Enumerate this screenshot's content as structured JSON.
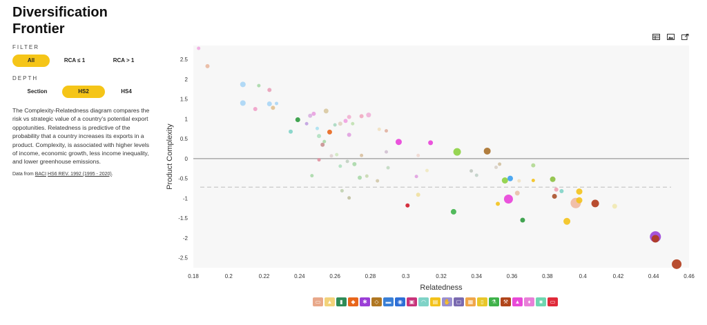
{
  "left_panel": {
    "title_line1": "Diversification",
    "title_line2": "Frontier",
    "filter_label": "FILTER",
    "filter_options": [
      "All",
      "RCA ≤ 1",
      "RCA > 1"
    ],
    "filter_selected": "All",
    "depth_label": "DEPTH",
    "depth_options": [
      "Section",
      "HS2",
      "HS4"
    ],
    "depth_selected": "HS2",
    "description": "The Complexity-Relatedness diagram compares the risk vs strategic value of a country's potential export oppotunities. Relatedness is predictive of the probability that a country increases its exports in a product. Complexity, is associated with higher levels of income, economic growth, less income inequality, and lower greenhouse emissions.",
    "source_prefix": "Data from",
    "source_link1": "BACI",
    "source_link2": "HS6 REV. 1992 (1995 - 2020)",
    "source_suffix": "."
  },
  "toolbar": {
    "icons": [
      "table-icon",
      "image-icon",
      "share-icon"
    ]
  },
  "legend": {
    "icons": [
      "sofa-icon",
      "hat-icon",
      "shirt-icon",
      "shoe-icon",
      "gear-icon",
      "gem-icon",
      "bread-icon",
      "dial-icon",
      "chip-icon",
      "arc-icon",
      "box-icon",
      "hand-icon",
      "cube-icon",
      "bus-icon",
      "bottle-icon",
      "flask-icon",
      "tool-icon",
      "drop-icon",
      "dress-icon",
      "swatch-icon",
      "ticket-icon"
    ],
    "colors": [
      "#e8a88a",
      "#f2d27a",
      "#2e8b57",
      "#e8661c",
      "#9b3fd6",
      "#b07722",
      "#3a7fd6",
      "#2e6fd6",
      "#c8337a",
      "#7fd3c7",
      "#f3c21b",
      "#9a8fd0",
      "#7a6ab0",
      "#f0a64a",
      "#e8c72a",
      "#3fb24a",
      "#b0451a",
      "#e84ad8",
      "#e87fd8",
      "#6fd6b0",
      "#e02a3a"
    ]
  },
  "chart_data": {
    "type": "scatter",
    "xlabel": "Relatedness",
    "ylabel": "Product Complexity",
    "xlim": [
      0.18,
      0.46
    ],
    "ylim": [
      -2.75,
      2.85
    ],
    "x_ticks": [
      "0.18",
      "0.2",
      "0.22",
      "0.24",
      "0.26",
      "0.28",
      "0.3",
      "0.32",
      "0.34",
      "0.36",
      "0.38",
      "0.4",
      "0.42",
      "0.44",
      "0.46"
    ],
    "y_ticks": [
      "2.5",
      "2",
      "1.5",
      "1",
      "0.5",
      "0",
      "-0.5",
      "-1",
      "-1.5",
      "-2",
      "-2.5"
    ],
    "reference_line_y": 0,
    "dashed_line_y": -0.72,
    "grid": false,
    "points": [
      {
        "x": 0.183,
        "y": 2.78,
        "c": "#f0a8e0",
        "r": 2.5
      },
      {
        "x": 0.188,
        "y": 2.33,
        "c": "#e8b8a0",
        "r": 3
      },
      {
        "x": 0.208,
        "y": 1.87,
        "c": "#a9d5f5",
        "r": 4
      },
      {
        "x": 0.208,
        "y": 1.4,
        "c": "#a9d5f5",
        "r": 4
      },
      {
        "x": 0.215,
        "y": 1.25,
        "c": "#f0a0c8",
        "r": 3
      },
      {
        "x": 0.217,
        "y": 1.84,
        "c": "#a8d8a8",
        "r": 2.5
      },
      {
        "x": 0.223,
        "y": 1.73,
        "c": "#e8a0b8",
        "r": 3
      },
      {
        "x": 0.223,
        "y": 1.38,
        "c": "#a9d5f5",
        "r": 3.5
      },
      {
        "x": 0.225,
        "y": 1.28,
        "c": "#e0c090",
        "r": 3
      },
      {
        "x": 0.227,
        "y": 1.39,
        "c": "#a9d5f5",
        "r": 2.5
      },
      {
        "x": 0.235,
        "y": 0.68,
        "c": "#7fd3c7",
        "r": 3
      },
      {
        "x": 0.239,
        "y": 0.98,
        "c": "#2e9a3e",
        "r": 3.5
      },
      {
        "x": 0.244,
        "y": 0.88,
        "c": "#c0a0e0",
        "r": 2.5
      },
      {
        "x": 0.246,
        "y": 1.08,
        "c": "#d8b0e0",
        "r": 3
      },
      {
        "x": 0.248,
        "y": 1.13,
        "c": "#e8a0e0",
        "r": 3
      },
      {
        "x": 0.25,
        "y": 0.76,
        "c": "#a9e0f0",
        "r": 2.5
      },
      {
        "x": 0.251,
        "y": 0.57,
        "c": "#b0e0c0",
        "r": 3
      },
      {
        "x": 0.253,
        "y": 0.35,
        "c": "#c89090",
        "r": 3
      },
      {
        "x": 0.254,
        "y": 0.43,
        "c": "#a8d8a8",
        "r": 2.5
      },
      {
        "x": 0.255,
        "y": 1.2,
        "c": "#d8c8a0",
        "r": 3.5
      },
      {
        "x": 0.257,
        "y": 0.67,
        "c": "#e8661c",
        "r": 3.5
      },
      {
        "x": 0.26,
        "y": 0.85,
        "c": "#a8d8c0",
        "r": 2.5
      },
      {
        "x": 0.263,
        "y": 0.88,
        "c": "#e0d0c0",
        "r": 3
      },
      {
        "x": 0.266,
        "y": 0.95,
        "c": "#f0a0e0",
        "r": 3
      },
      {
        "x": 0.268,
        "y": 1.05,
        "c": "#f0b0d0",
        "r": 3
      },
      {
        "x": 0.268,
        "y": 0.6,
        "c": "#e0a0e0",
        "r": 3
      },
      {
        "x": 0.27,
        "y": 0.88,
        "c": "#c0e0b0",
        "r": 2.5
      },
      {
        "x": 0.275,
        "y": 1.07,
        "c": "#f0a8c0",
        "r": 3
      },
      {
        "x": 0.279,
        "y": 1.1,
        "c": "#f0b0d8",
        "r": 3.5
      },
      {
        "x": 0.251,
        "y": -0.03,
        "c": "#e090a0",
        "r": 2.5
      },
      {
        "x": 0.247,
        "y": -0.43,
        "c": "#a8d8a8",
        "r": 2.5
      },
      {
        "x": 0.258,
        "y": 0.07,
        "c": "#e0d0d0",
        "r": 2.5
      },
      {
        "x": 0.261,
        "y": 0.1,
        "c": "#d0e8c0",
        "r": 2.5
      },
      {
        "x": 0.263,
        "y": -0.19,
        "c": "#b0e0c0",
        "r": 2.5
      },
      {
        "x": 0.267,
        "y": -0.07,
        "c": "#c0d0c0",
        "r": 2.5
      },
      {
        "x": 0.271,
        "y": -0.14,
        "c": "#a8d8a8",
        "r": 3
      },
      {
        "x": 0.274,
        "y": -0.48,
        "c": "#a8d8a8",
        "r": 3
      },
      {
        "x": 0.275,
        "y": 0.08,
        "c": "#d8c0a0",
        "r": 2.5
      },
      {
        "x": 0.278,
        "y": -0.44,
        "c": "#c8d8b0",
        "r": 2.5
      },
      {
        "x": 0.264,
        "y": -0.81,
        "c": "#c0d0b0",
        "r": 2.5
      },
      {
        "x": 0.268,
        "y": -0.99,
        "c": "#c0c0a0",
        "r": 2.5
      },
      {
        "x": 0.284,
        "y": -0.56,
        "c": "#d0c8a8",
        "r": 2.5
      },
      {
        "x": 0.285,
        "y": 0.74,
        "c": "#f0e0c0",
        "r": 2.5
      },
      {
        "x": 0.289,
        "y": 0.7,
        "c": "#e0b0a0",
        "r": 2.5
      },
      {
        "x": 0.289,
        "y": 0.17,
        "c": "#d0c0d0",
        "r": 2.5
      },
      {
        "x": 0.29,
        "y": -0.23,
        "c": "#c0d8c0",
        "r": 2.5
      },
      {
        "x": 0.296,
        "y": 0.42,
        "c": "#e840d8",
        "r": 4.5
      },
      {
        "x": 0.301,
        "y": -1.18,
        "c": "#d01a2a",
        "r": 3
      },
      {
        "x": 0.306,
        "y": -0.45,
        "c": "#e0a0e0",
        "r": 2.5
      },
      {
        "x": 0.307,
        "y": 0.08,
        "c": "#f0d8d0",
        "r": 2.5
      },
      {
        "x": 0.307,
        "y": -0.91,
        "c": "#f0e0a0",
        "r": 3
      },
      {
        "x": 0.312,
        "y": -0.3,
        "c": "#f0e8c0",
        "r": 2.5
      },
      {
        "x": 0.314,
        "y": 0.4,
        "c": "#e840d8",
        "r": 3.5
      },
      {
        "x": 0.327,
        "y": -1.34,
        "c": "#3fb24a",
        "r": 4
      },
      {
        "x": 0.329,
        "y": 0.17,
        "c": "#8cd040",
        "r": 5.5
      },
      {
        "x": 0.337,
        "y": -0.31,
        "c": "#c0c8c0",
        "r": 2.5
      },
      {
        "x": 0.34,
        "y": -0.42,
        "c": "#c0d0c8",
        "r": 2.5
      },
      {
        "x": 0.346,
        "y": 0.19,
        "c": "#a8702a",
        "r": 5
      },
      {
        "x": 0.351,
        "y": -0.22,
        "c": "#d8d0c8",
        "r": 2.5
      },
      {
        "x": 0.352,
        "y": -1.14,
        "c": "#f3c21b",
        "r": 3
      },
      {
        "x": 0.353,
        "y": -0.14,
        "c": "#d0c0a0",
        "r": 2.5
      },
      {
        "x": 0.356,
        "y": -0.55,
        "c": "#8cd040",
        "r": 4.5
      },
      {
        "x": 0.358,
        "y": -1.02,
        "c": "#e840d8",
        "r": 6.5
      },
      {
        "x": 0.359,
        "y": -0.5,
        "c": "#3a9ff0",
        "r": 4
      },
      {
        "x": 0.363,
        "y": -0.87,
        "c": "#e8c0a8",
        "r": 3.5
      },
      {
        "x": 0.364,
        "y": -0.56,
        "c": "#f0e0c0",
        "r": 2.5
      },
      {
        "x": 0.366,
        "y": -1.55,
        "c": "#2e9a3e",
        "r": 3.5
      },
      {
        "x": 0.372,
        "y": -0.55,
        "c": "#f3c21b",
        "r": 2.5
      },
      {
        "x": 0.372,
        "y": -0.17,
        "c": "#b0d890",
        "r": 3
      },
      {
        "x": 0.383,
        "y": -0.52,
        "c": "#8cc040",
        "r": 4
      },
      {
        "x": 0.384,
        "y": -0.95,
        "c": "#a8502a",
        "r": 3.5
      },
      {
        "x": 0.385,
        "y": -0.78,
        "c": "#f0a0b0",
        "r": 3
      },
      {
        "x": 0.388,
        "y": -0.82,
        "c": "#7fd3c7",
        "r": 3
      },
      {
        "x": 0.391,
        "y": -1.58,
        "c": "#f3c21b",
        "r": 5
      },
      {
        "x": 0.396,
        "y": -1.12,
        "c": "#f0b8a0",
        "r": 7.5
      },
      {
        "x": 0.398,
        "y": -0.83,
        "c": "#f3c21b",
        "r": 4.5
      },
      {
        "x": 0.398,
        "y": -1.05,
        "c": "#f3c21b",
        "r": 4.5
      },
      {
        "x": 0.407,
        "y": -1.13,
        "c": "#b03a1a",
        "r": 5.5
      },
      {
        "x": 0.418,
        "y": -1.2,
        "c": "#f0e8b0",
        "r": 3.5
      },
      {
        "x": 0.441,
        "y": -1.97,
        "c": "#9b3fd6",
        "r": 8
      },
      {
        "x": 0.441,
        "y": -2.02,
        "c": "#b03a1a",
        "r": 5.5
      },
      {
        "x": 0.453,
        "y": -2.66,
        "c": "#b03a1a",
        "r": 7
      }
    ]
  }
}
